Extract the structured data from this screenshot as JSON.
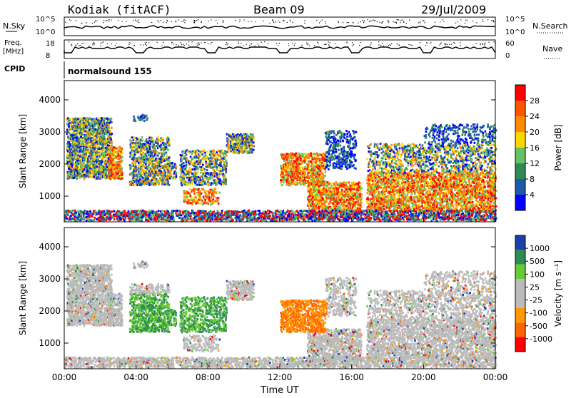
{
  "header": {
    "station": "Kodiak (fitACF)",
    "beam": "Beam 09",
    "date": "29/Jul/2009"
  },
  "strip_nsky": {
    "left_label": "N.Sky",
    "right_label": "N.Search",
    "ticks_left": [
      "10^5",
      "10^0"
    ],
    "ticks_right": [
      "10^5",
      "10^0"
    ]
  },
  "strip_freq": {
    "left_label_1": "Freq.",
    "left_label_2": "[MHz]",
    "right_label": "Nave",
    "ticks_left": [
      "18",
      "8"
    ],
    "ticks_right": [
      "60",
      "0"
    ]
  },
  "cpid": {
    "label": "CPID",
    "value": "normalsound 155"
  },
  "colors": {
    "power_scale": [
      "#0000ff",
      "#1e5aa8",
      "#2e8b57",
      "#66c266",
      "#ffd700",
      "#ff8c00",
      "#ff5500",
      "#ff0000"
    ],
    "velocity_scale": [
      "#ff0000",
      "#ff6600",
      "#ff9900",
      "#bbbbbb",
      "#bbbbbb",
      "#66cc33",
      "#2e8b57",
      "#1e3fa8"
    ]
  },
  "chart_data": [
    {
      "type": "heatmap",
      "name": "power",
      "xlabel": "Time UT",
      "ylabel": "Slant Range [km]",
      "x_ticks": [
        "00:00",
        "04:00",
        "08:00",
        "12:00",
        "16:00",
        "20:00",
        "00:00"
      ],
      "y_ticks": [
        "1000",
        "2000",
        "3000",
        "4000"
      ],
      "ylim": [
        200,
        4600
      ],
      "colorbar_label": "Power [dB]",
      "colorbar_ticks": [
        "4",
        "8",
        "12",
        "16",
        "20",
        "24",
        "28"
      ],
      "colorbar_range": [
        0,
        32
      ]
    },
    {
      "type": "heatmap",
      "name": "velocity",
      "xlabel": "Time UT",
      "ylabel": "Slant Range [km]",
      "x_ticks": [
        "00:00",
        "04:00",
        "08:00",
        "12:00",
        "16:00",
        "20:00",
        "00:00"
      ],
      "y_ticks": [
        "1000",
        "2000",
        "3000",
        "4000"
      ],
      "ylim": [
        200,
        4600
      ],
      "colorbar_label": "Velocity [m s⁻¹]",
      "colorbar_ticks": [
        "1000",
        "500",
        "100",
        "25",
        "-25",
        "-100",
        "-500",
        "-1000"
      ]
    }
  ]
}
